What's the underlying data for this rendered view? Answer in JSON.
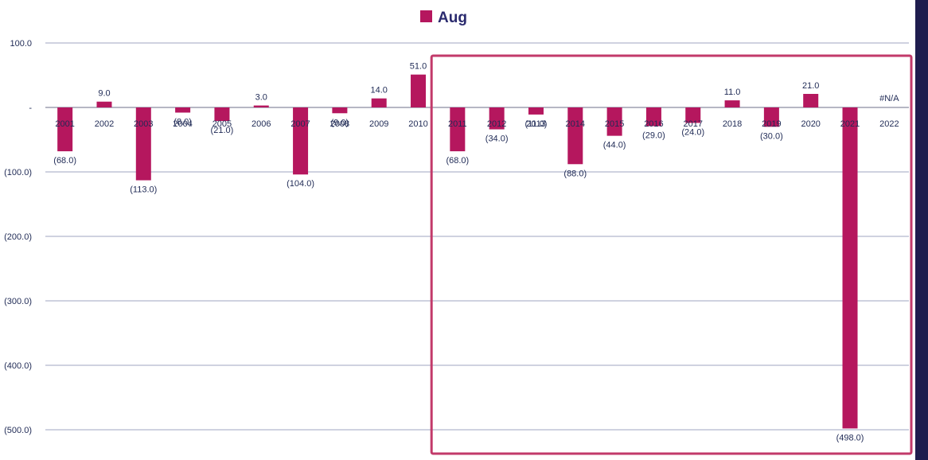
{
  "chart_data": {
    "type": "bar",
    "legend": {
      "entries": [
        "Aug"
      ],
      "position": "top-center"
    },
    "categories": [
      "2001",
      "2002",
      "2003",
      "2004",
      "2005",
      "2006",
      "2007",
      "2008",
      "2009",
      "2010",
      "2011",
      "2012",
      "2013",
      "2014",
      "2015",
      "2016",
      "2017",
      "2018",
      "2019",
      "2020",
      "2021",
      "2022"
    ],
    "series": [
      {
        "name": "Aug",
        "color": "#b5175e",
        "values": [
          -68,
          9,
          -113,
          -8,
          -21,
          3,
          -104,
          -9,
          14,
          51,
          -68,
          -34,
          -11,
          -88,
          -44,
          -29,
          -24,
          11,
          -30,
          21,
          -498,
          null
        ]
      }
    ],
    "data_labels": [
      "(68.0)",
      "9.0",
      "(113.0)",
      "(8.0)",
      "(21.0)",
      "3.0",
      "(104.0)",
      "(9.0)",
      "14.0",
      "51.0",
      "(68.0)",
      "(34.0)",
      "(11.0)",
      "(88.0)",
      "(44.0)",
      "(29.0)",
      "(24.0)",
      "11.0",
      "(30.0)",
      "21.0",
      "(498.0)",
      "#N/A"
    ],
    "y_ticks": [
      {
        "value": 100,
        "label": "100.0"
      },
      {
        "value": 0,
        "label": "-"
      },
      {
        "value": -100,
        "label": "(100.0)"
      },
      {
        "value": -200,
        "label": "(200.0)"
      },
      {
        "value": -300,
        "label": "(300.0)"
      },
      {
        "value": -400,
        "label": "(400.0)"
      },
      {
        "value": -500,
        "label": "(500.0)"
      }
    ],
    "ylim": [
      -500,
      100
    ],
    "grid": true,
    "highlight": {
      "from_category": "2011",
      "to_category": "2022",
      "color": "#c23a6a"
    }
  }
}
